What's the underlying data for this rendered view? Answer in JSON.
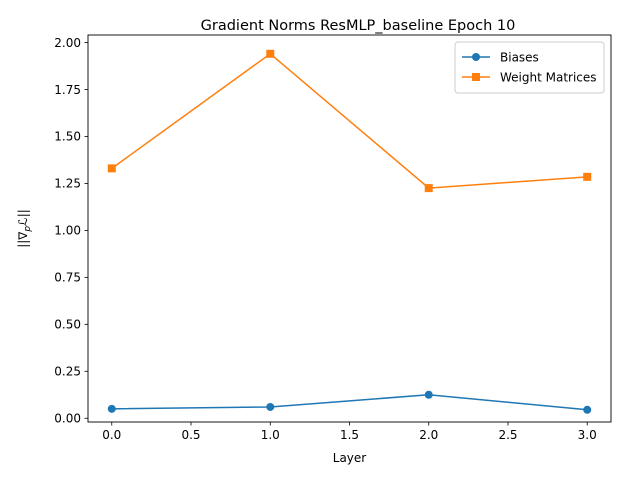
{
  "chart_data": {
    "type": "line",
    "title": "Gradient Norms ResMLP_baseline Epoch 10",
    "xlabel": "Layer",
    "ylabel": "||∇",
    "ylabel_sub": "p",
    "ylabel_tail": "ℒ||",
    "x": [
      0,
      1,
      2,
      3
    ],
    "xlim": [
      -0.15,
      3.15
    ],
    "ylim": [
      -0.02,
      2.04
    ],
    "xticks": [
      "0.0",
      "0.5",
      "1.0",
      "1.5",
      "2.0",
      "2.5",
      "3.0"
    ],
    "yticks": [
      "0.00",
      "0.25",
      "0.50",
      "0.75",
      "1.00",
      "1.25",
      "1.50",
      "1.75",
      "2.00"
    ],
    "grid": false,
    "legend_position": "upper right",
    "series": [
      {
        "name": "Biases",
        "values": [
          0.05,
          0.06,
          0.125,
          0.045
        ],
        "color": "#1f77b4",
        "marker": "circle"
      },
      {
        "name": "Weight Matrices",
        "values": [
          1.33,
          1.94,
          1.225,
          1.285
        ],
        "color": "#ff7f0e",
        "marker": "square"
      }
    ]
  }
}
